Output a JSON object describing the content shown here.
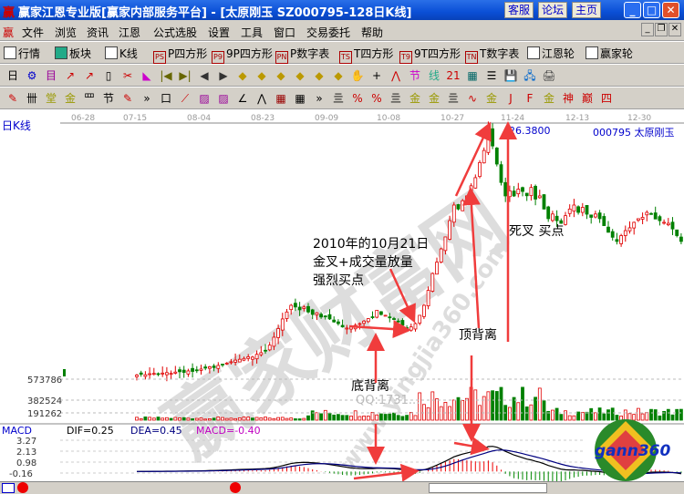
{
  "window": {
    "title": "赢家江恩专业版[赢家内部服务平台] - [太原刚玉   SZ000795-128日K线]",
    "logo": "赢",
    "buttons": [
      "客服",
      "论坛",
      "主页"
    ]
  },
  "menu": {
    "logo": "赢",
    "items": [
      "文件",
      "浏览",
      "资讯",
      "江恩",
      "公式选股",
      "设置",
      "工具",
      "窗口",
      "交易委托",
      "帮助"
    ]
  },
  "toolbar1": [
    {
      "icon": "grid-icon",
      "label": "行情"
    },
    {
      "icon": "blocks-icon",
      "label": "板块"
    },
    {
      "icon": "kline-icon",
      "label": "K线"
    },
    {
      "icon": "PS",
      "label": "P四方形"
    },
    {
      "icon": "P9",
      "label": "9P四方形"
    },
    {
      "icon": "PN",
      "label": "P数字表"
    },
    {
      "icon": "TS",
      "label": "T四方形"
    },
    {
      "icon": "T9",
      "label": "9T四方形"
    },
    {
      "icon": "TN",
      "label": "T数字表"
    },
    {
      "icon": "wheel-icon",
      "label": "江恩轮"
    },
    {
      "icon": "bing-icon",
      "label": "赢家轮"
    }
  ],
  "toolbar2": [
    "日",
    "⚙",
    "目",
    "↗",
    "↗",
    "▯",
    "✂",
    "◣",
    "|◀",
    "▶|",
    "◀",
    "▶",
    "◆",
    "◆",
    "◆",
    "◆",
    "◆",
    "◆",
    "✋",
    "+",
    "⋀",
    "节",
    "线",
    "21",
    "▦",
    "☰",
    "💾",
    "🖧",
    "🖨"
  ],
  "toolbar3": [
    "✎",
    "卌",
    "堂",
    "金",
    "罒",
    "节",
    "✎",
    "»",
    "口",
    "⟋",
    "▨",
    "▨",
    "∠",
    "⋀",
    "▦",
    "▦",
    "»",
    "亖",
    "%",
    "%",
    "亖",
    "金",
    "金",
    "亖",
    "∿",
    "金",
    "J",
    "F",
    "金",
    "神",
    "巅",
    "四"
  ],
  "chart": {
    "period_label": "日K线",
    "stock_label": "000795 太原刚玉",
    "peak_label": "26.3800",
    "dates": [
      "06-28",
      "07-15",
      "08-04",
      "08-23",
      "09-09",
      "10-08",
      "10-27",
      "11-24",
      "12-13",
      "12-30"
    ],
    "volume_ticks": [
      "573786",
      "382524",
      "191262"
    ],
    "macd": {
      "title": "MACD",
      "dif": "DIF=0.25",
      "dea": "DEA=0.45",
      "macd": "MACD=-0.40",
      "ticks": [
        "3.27",
        "2.13",
        "0.98",
        "-0.16"
      ]
    },
    "annotations": {
      "buy1": "2010年的10月21日",
      "buy2": "金叉+成交量放量",
      "buy3": "强烈买点",
      "dead": "死叉 买点",
      "top": "顶背离",
      "bottom": "底背离"
    },
    "watermark": {
      "site": "赢家财富网",
      "url": "www.yingjia360.com",
      "qq": "QQ:1731...",
      "logo": "gann360"
    },
    "colors": {
      "up": "#e00000",
      "down": "#008000",
      "dif": "#000000",
      "dea": "#000080",
      "arrow": "#f03c3c"
    }
  },
  "chart_data": {
    "type": "candlestick",
    "peak": 26.38,
    "closes": [
      11.2,
      11.25,
      11.22,
      11.28,
      11.3,
      11.26,
      11.32,
      11.35,
      11.3,
      11.38,
      11.4,
      11.36,
      11.45,
      11.42,
      11.5,
      11.56,
      11.62,
      11.7,
      11.65,
      11.78,
      11.85,
      11.92,
      12.0,
      12.1,
      12.15,
      12.2,
      12.3,
      12.28,
      12.45,
      12.55,
      12.65,
      13.0,
      13.48,
      14.0,
      14.58,
      15.0,
      15.4,
      15.3,
      15.13,
      15.3,
      15.0,
      14.85,
      14.95,
      14.7,
      14.75,
      14.58,
      14.4,
      14.3,
      14.1,
      14.03,
      14.1,
      14.2,
      14.3,
      14.45,
      14.6,
      14.69,
      15.1,
      14.85,
      14.8,
      14.7,
      14.58,
      14.4,
      14.2,
      14.03,
      14.1,
      14.3,
      14.8,
      15.4,
      16.3,
      17.32,
      18.0,
      18.8,
      19.52,
      20.5,
      21.44,
      21.2,
      21.7,
      21.99,
      22.6,
      23.09,
      24.0,
      24.73,
      26.1,
      25.0,
      23.91,
      22.8,
      21.99,
      22.3,
      21.99,
      22.4,
      22.26,
      22.0,
      22.5,
      21.8,
      21.99,
      21.2,
      20.62,
      20.9,
      20.5,
      20.34,
      20.8,
      21.2,
      21.44,
      21.0,
      21.3,
      20.89,
      20.7,
      20.9,
      20.62,
      20.2,
      19.8,
      19.5,
      19.25,
      19.6,
      19.9,
      20.07,
      20.4,
      20.62,
      20.7,
      21.0,
      20.89,
      20.6,
      20.5,
      20.4,
      20.34,
      20.0,
      19.6,
      19.25
    ]
  }
}
